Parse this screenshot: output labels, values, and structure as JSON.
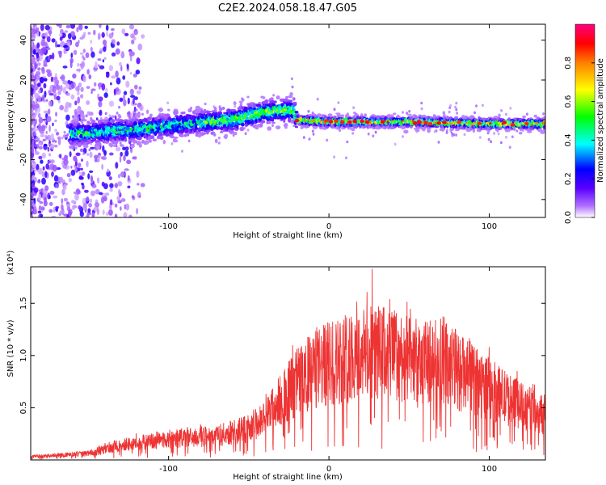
{
  "title": "C2E2.2024.058.18.47.G05",
  "chart_data": [
    {
      "type": "heatmap",
      "xlabel": "Height of straight line (km)",
      "ylabel": "Frequency (Hz)",
      "xlim": [
        -186,
        135
      ],
      "ylim": [
        -49,
        48
      ],
      "x_ticks": [
        -100,
        0,
        100
      ],
      "y_ticks": [
        -40,
        -20,
        0,
        20,
        40
      ],
      "colorbar": {
        "label": "Normalized spectral amplitude",
        "range": [
          0.0,
          1.0
        ],
        "ticks": [
          0.0,
          0.2,
          0.4,
          0.6,
          0.8
        ],
        "tick_labels": [
          "0.0",
          "0.2",
          "0.4",
          "0.6",
          "0.8"
        ]
      },
      "ridge": {
        "description_points": [
          {
            "x": -160,
            "y": -7
          },
          {
            "x": -120,
            "y": -5
          },
          {
            "x": -90,
            "y": -2
          },
          {
            "x": -60,
            "y": 0
          },
          {
            "x": -40,
            "y": 4
          },
          {
            "x": -22,
            "y": 5
          },
          {
            "x": -20,
            "y": 0
          },
          {
            "x": 0,
            "y": -1
          },
          {
            "x": 50,
            "y": -1
          },
          {
            "x": 100,
            "y": -2
          },
          {
            "x": 135,
            "y": -2
          }
        ]
      },
      "grid": false
    },
    {
      "type": "line",
      "xlabel": "Height of straight line (km)",
      "ylabel": "SNR (10 * v/v)",
      "y_multiplier": "(x10⁴)",
      "xlim": [
        -186,
        135
      ],
      "ylim": [
        0,
        1.85
      ],
      "x_ticks": [
        -100,
        0,
        100
      ],
      "y_ticks": [
        0.5,
        1.0,
        1.5
      ],
      "y_tick_labels": [
        "0.5",
        "1.0",
        "1.5"
      ],
      "series": [
        {
          "color": "#ee3333",
          "envelope": [
            {
              "x": -186,
              "y": 0.03
            },
            {
              "x": -150,
              "y": 0.06
            },
            {
              "x": -130,
              "y": 0.14
            },
            {
              "x": -100,
              "y": 0.2
            },
            {
              "x": -70,
              "y": 0.23
            },
            {
              "x": -50,
              "y": 0.3
            },
            {
              "x": -40,
              "y": 0.4
            },
            {
              "x": -30,
              "y": 0.58
            },
            {
              "x": -20,
              "y": 0.75
            },
            {
              "x": -10,
              "y": 0.85
            },
            {
              "x": 0,
              "y": 0.92
            },
            {
              "x": 15,
              "y": 1.0
            },
            {
              "x": 30,
              "y": 1.03
            },
            {
              "x": 45,
              "y": 1.0
            },
            {
              "x": 55,
              "y": 0.88
            },
            {
              "x": 70,
              "y": 0.98
            },
            {
              "x": 85,
              "y": 0.8
            },
            {
              "x": 100,
              "y": 0.68
            },
            {
              "x": 115,
              "y": 0.55
            },
            {
              "x": 135,
              "y": 0.42
            }
          ],
          "peak": {
            "x": 27,
            "y": 1.83
          }
        }
      ],
      "grid": false
    }
  ]
}
